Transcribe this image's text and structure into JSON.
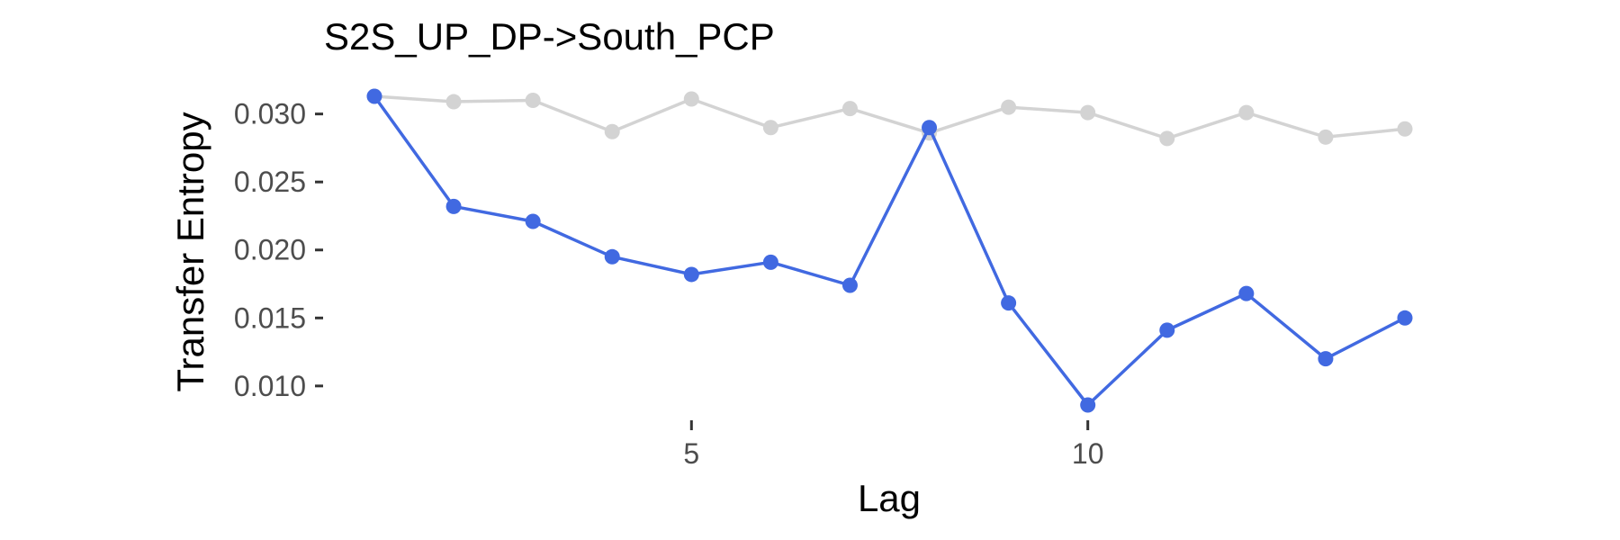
{
  "chart_data": {
    "type": "line",
    "title": "S2S_UP_DP->South_PCP",
    "xlabel": "Lag",
    "ylabel": "Transfer Entropy",
    "x": [
      1,
      2,
      3,
      4,
      5,
      6,
      7,
      8,
      9,
      10,
      11,
      12,
      13,
      14
    ],
    "xticks": [
      5,
      10
    ],
    "xtick_labels": [
      "5",
      "10"
    ],
    "yticks": [
      0.01,
      0.015,
      0.02,
      0.025,
      0.03
    ],
    "ytick_labels": [
      "0.010",
      "0.015",
      "0.020",
      "0.025",
      "0.030"
    ],
    "xlim": [
      1,
      14
    ],
    "ylim": [
      0.0086,
      0.0313
    ],
    "grid": false,
    "legend": "none",
    "series": [
      {
        "color": "#d3d3d3",
        "values": [
          0.0313,
          0.0309,
          0.031,
          0.0287,
          0.0311,
          0.029,
          0.0304,
          0.0286,
          0.0305,
          0.0301,
          0.0282,
          0.0301,
          0.0283,
          0.0289
        ]
      },
      {
        "color": "#4169e1",
        "values": [
          0.0313,
          0.0232,
          0.0221,
          0.0195,
          0.0182,
          0.0191,
          0.0174,
          0.029,
          0.0161,
          0.0086,
          0.0141,
          0.0168,
          0.012,
          0.015
        ]
      }
    ]
  }
}
